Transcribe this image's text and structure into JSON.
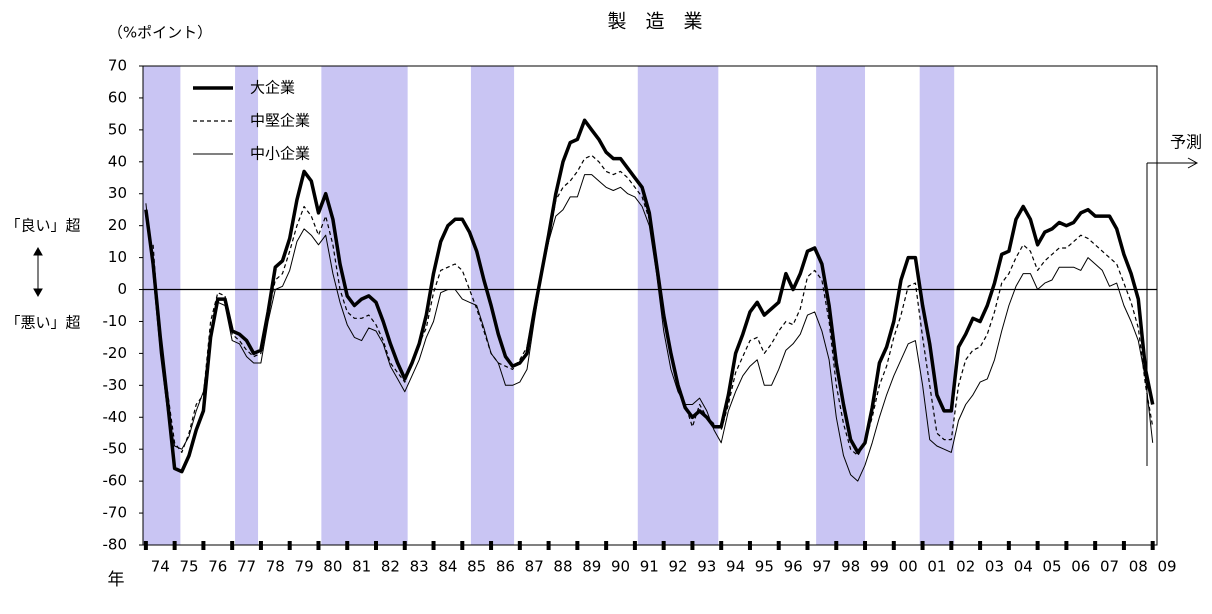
{
  "chart_data": {
    "type": "line",
    "title": "製　造　業",
    "y_unit_label": "（%ポイント）",
    "x_axis_label": "年",
    "annotations": {
      "upper": "「良い」超",
      "lower": "「悪い」超",
      "forecast": "予測"
    },
    "xlim": [
      1973.9,
      2009.15
    ],
    "ylim": [
      -80,
      70
    ],
    "yticks": [
      70,
      60,
      50,
      40,
      30,
      20,
      10,
      0,
      -10,
      -20,
      -30,
      -40,
      -50,
      -60,
      -70,
      -80
    ],
    "xticks": [
      {
        "value": 1974.5,
        "label": "74"
      },
      {
        "value": 1975.5,
        "label": "75"
      },
      {
        "value": 1976.5,
        "label": "76"
      },
      {
        "value": 1977.5,
        "label": "77"
      },
      {
        "value": 1978.5,
        "label": "78"
      },
      {
        "value": 1979.5,
        "label": "79"
      },
      {
        "value": 1980.5,
        "label": "80"
      },
      {
        "value": 1981.5,
        "label": "81"
      },
      {
        "value": 1982.5,
        "label": "82"
      },
      {
        "value": 1983.5,
        "label": "83"
      },
      {
        "value": 1984.5,
        "label": "84"
      },
      {
        "value": 1985.5,
        "label": "85"
      },
      {
        "value": 1986.5,
        "label": "86"
      },
      {
        "value": 1987.5,
        "label": "87"
      },
      {
        "value": 1988.5,
        "label": "88"
      },
      {
        "value": 1989.5,
        "label": "89"
      },
      {
        "value": 1990.5,
        "label": "90"
      },
      {
        "value": 1991.5,
        "label": "91"
      },
      {
        "value": 1992.5,
        "label": "92"
      },
      {
        "value": 1993.5,
        "label": "93"
      },
      {
        "value": 1994.5,
        "label": "94"
      },
      {
        "value": 1995.5,
        "label": "95"
      },
      {
        "value": 1996.5,
        "label": "96"
      },
      {
        "value": 1997.5,
        "label": "97"
      },
      {
        "value": 1998.5,
        "label": "98"
      },
      {
        "value": 1999.5,
        "label": "99"
      },
      {
        "value": 2000.5,
        "label": "00"
      },
      {
        "value": 2001.5,
        "label": "01"
      },
      {
        "value": 2002.5,
        "label": "02"
      },
      {
        "value": 2003.5,
        "label": "03"
      },
      {
        "value": 2004.5,
        "label": "04"
      },
      {
        "value": 2005.5,
        "label": "05"
      },
      {
        "value": 2006.5,
        "label": "06"
      },
      {
        "value": 2007.5,
        "label": "07"
      },
      {
        "value": 2008.5,
        "label": "08"
      },
      {
        "value": 2009.5,
        "label": "09"
      }
    ],
    "shade_color": "#c9c5f3",
    "shaded_periods": [
      [
        1973.9,
        1975.2
      ],
      [
        1977.1,
        1977.9
      ],
      [
        1980.1,
        1983.1
      ],
      [
        1985.3,
        1986.8
      ],
      [
        1991.1,
        1993.9
      ],
      [
        1997.3,
        1999.0
      ],
      [
        2000.9,
        2002.1
      ]
    ],
    "x": [
      1974,
      1974.25,
      1974.5,
      1974.75,
      1975,
      1975.25,
      1975.5,
      1975.75,
      1976,
      1976.25,
      1976.5,
      1976.75,
      1977,
      1977.25,
      1977.5,
      1977.75,
      1978,
      1978.25,
      1978.5,
      1978.75,
      1979,
      1979.25,
      1979.5,
      1979.75,
      1980,
      1980.25,
      1980.5,
      1980.75,
      1981,
      1981.25,
      1981.5,
      1981.75,
      1982,
      1982.25,
      1982.5,
      1982.75,
      1983,
      1983.25,
      1983.5,
      1983.75,
      1984,
      1984.25,
      1984.5,
      1984.75,
      1985,
      1985.25,
      1985.5,
      1985.75,
      1986,
      1986.25,
      1986.5,
      1986.75,
      1987,
      1987.25,
      1987.5,
      1987.75,
      1988,
      1988.25,
      1988.5,
      1988.75,
      1989,
      1989.25,
      1989.5,
      1989.75,
      1990,
      1990.25,
      1990.5,
      1990.75,
      1991,
      1991.25,
      1991.5,
      1991.75,
      1992,
      1992.25,
      1992.5,
      1992.75,
      1993,
      1993.25,
      1993.5,
      1993.75,
      1994,
      1994.25,
      1994.5,
      1994.75,
      1995,
      1995.25,
      1995.5,
      1995.75,
      1996,
      1996.25,
      1996.5,
      1996.75,
      1997,
      1997.25,
      1997.5,
      1997.75,
      1998,
      1998.25,
      1998.5,
      1998.75,
      1999,
      1999.25,
      1999.5,
      1999.75,
      2000,
      2000.25,
      2000.5,
      2000.75,
      2001,
      2001.25,
      2001.5,
      2001.75,
      2002,
      2002.25,
      2002.5,
      2002.75,
      2003,
      2003.25,
      2003.5,
      2003.75,
      2004,
      2004.25,
      2004.5,
      2004.75,
      2005,
      2005.25,
      2005.5,
      2005.75,
      2006,
      2006.25,
      2006.5,
      2006.75,
      2007,
      2007.25,
      2007.5,
      2007.75,
      2008,
      2008.25,
      2008.5,
      2008.75,
      2009
    ],
    "series": [
      {
        "name": "大企業",
        "color": "#000000",
        "width": 3.5,
        "dash": "none",
        "values": [
          25,
          8,
          -15,
          -35,
          -56,
          -57,
          -52,
          -44,
          -38,
          -15,
          -3,
          -3,
          -13,
          -14,
          -16,
          -20,
          -19,
          -7,
          7,
          9,
          16,
          28,
          37,
          34,
          24,
          30,
          22,
          8,
          -2,
          -5,
          -3,
          -2,
          -4,
          -10,
          -17,
          -23,
          -28,
          -23,
          -17,
          -8,
          5,
          15,
          20,
          22,
          22,
          18,
          12,
          3,
          -5,
          -14,
          -21,
          -24,
          -23,
          -20,
          -7,
          5,
          17,
          30,
          40,
          46,
          47,
          53,
          50,
          47,
          43,
          41,
          41,
          38,
          35,
          32,
          24,
          8,
          -8,
          -20,
          -30,
          -37,
          -40,
          -38,
          -40,
          -43,
          -43,
          -33,
          -20,
          -14,
          -7,
          -4,
          -8,
          -6,
          -4,
          5,
          0,
          5,
          12,
          13,
          8,
          -5,
          -23,
          -36,
          -47,
          -51,
          -48,
          -37,
          -23,
          -18,
          -10,
          3,
          10,
          10,
          -5,
          -17,
          -33,
          -38,
          -38,
          -18,
          -14,
          -9,
          -10,
          -5,
          2,
          11,
          12,
          22,
          26,
          22,
          14,
          18,
          19,
          21,
          20,
          21,
          24,
          25,
          23,
          23,
          23,
          19,
          11,
          5,
          -3,
          -25,
          -36
        ]
      },
      {
        "name": "中堅企業",
        "color": "#000000",
        "width": 1.2,
        "dash": "4,3",
        "values": [
          null,
          14,
          -18,
          -32,
          -48,
          -51,
          -45,
          -36,
          -33,
          -10,
          -1,
          -2,
          -14,
          -16,
          -19,
          -21,
          -20,
          -8,
          3,
          5,
          12,
          20,
          26,
          23,
          17,
          23,
          14,
          0,
          -7,
          -9,
          -9,
          -8,
          -11,
          -16,
          -23,
          -26,
          -29,
          -23,
          -17,
          -12,
          -1,
          6,
          7,
          8,
          6,
          0,
          -6,
          -13,
          -20,
          -23,
          -24,
          -25,
          -22,
          -18,
          -6,
          5,
          15,
          28,
          32,
          34,
          37,
          41,
          42,
          40,
          37,
          36,
          37,
          35,
          32,
          29,
          22,
          6,
          -9,
          -20,
          -29,
          -36,
          -43,
          -36,
          -40,
          -42,
          -44,
          -36,
          -26,
          -21,
          -16,
          -15,
          -20,
          -17,
          -13,
          -10,
          -11,
          -6,
          4,
          6,
          3,
          -10,
          -30,
          -42,
          -50,
          -52,
          -48,
          -40,
          -30,
          -24,
          -15,
          -8,
          1,
          2,
          -15,
          -30,
          -45,
          -47,
          -47,
          -30,
          -22,
          -19,
          -18,
          -14,
          -7,
          2,
          5,
          10,
          14,
          12,
          6,
          9,
          11,
          13,
          13,
          15,
          17,
          16,
          14,
          12,
          10,
          8,
          2,
          -4,
          -12,
          -30,
          -43
        ]
      },
      {
        "name": "中小企業",
        "color": "#000000",
        "width": 1,
        "dash": "none",
        "values": [
          27,
          5,
          -20,
          -38,
          -49,
          -50,
          -46,
          -38,
          -32,
          -14,
          -4,
          -5,
          -16,
          -17,
          -21,
          -23,
          -23,
          -10,
          0,
          1,
          6,
          15,
          19,
          17,
          14,
          17,
          5,
          -4,
          -11,
          -15,
          -16,
          -12,
          -13,
          -17,
          -24,
          -28,
          -32,
          -27,
          -22,
          -15,
          -10,
          -1,
          0,
          0,
          -3,
          -4,
          -5,
          -12,
          -20,
          -23,
          -30,
          -30,
          -29,
          -25,
          -10,
          4,
          15,
          23,
          25,
          29,
          29,
          36,
          36,
          34,
          32,
          31,
          32,
          30,
          29,
          26,
          20,
          5,
          -13,
          -25,
          -32,
          -36,
          -36,
          -34,
          -38,
          -44,
          -48,
          -38,
          -32,
          -27,
          -24,
          -22,
          -30,
          -30,
          -25,
          -19,
          -17,
          -14,
          -8,
          -7,
          -13,
          -22,
          -40,
          -52,
          -58,
          -60,
          -55,
          -48,
          -40,
          -33,
          -27,
          -22,
          -17,
          -16,
          -30,
          -47,
          -49,
          -50,
          -51,
          -41,
          -36,
          -33,
          -29,
          -28,
          -22,
          -13,
          -5,
          1,
          5,
          5,
          0,
          2,
          3,
          7,
          7,
          7,
          6,
          10,
          8,
          6,
          1,
          2,
          -5,
          -10,
          -16,
          -28,
          -48
        ]
      }
    ]
  }
}
